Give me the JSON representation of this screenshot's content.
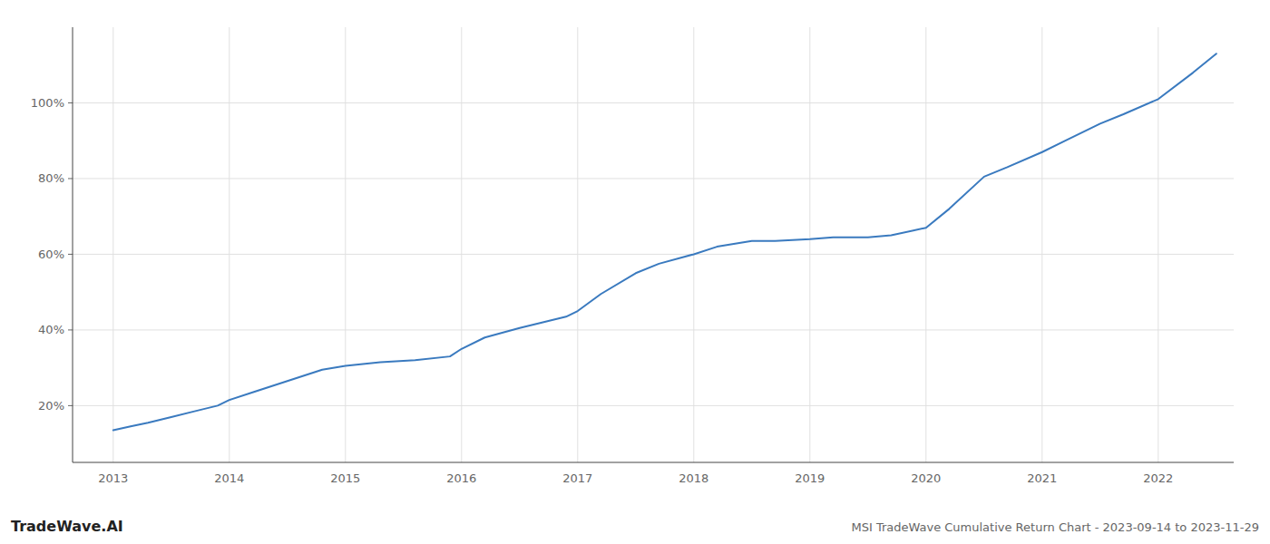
{
  "chart_data": {
    "type": "line",
    "title": "MSI TradeWave Cumulative Return Chart - 2023-09-14 to 2023-11-29",
    "annotations": [
      "TradeWave.AI"
    ],
    "color": "#3a7abf",
    "x": [
      2013.0,
      2013.15,
      2013.3,
      2013.5,
      2013.7,
      2013.9,
      2014.0,
      2014.2,
      2014.5,
      2014.8,
      2015.0,
      2015.3,
      2015.6,
      2015.9,
      2016.0,
      2016.2,
      2016.5,
      2016.7,
      2016.9,
      2017.0,
      2017.2,
      2017.5,
      2017.7,
      2018.0,
      2018.2,
      2018.5,
      2018.7,
      2019.0,
      2019.2,
      2019.5,
      2019.7,
      2020.0,
      2020.2,
      2020.5,
      2020.7,
      2021.0,
      2021.2,
      2021.5,
      2021.7,
      2022.0,
      2022.3,
      2022.5
    ],
    "values": [
      13.5,
      14.5,
      15.5,
      17.0,
      18.5,
      20.0,
      21.5,
      23.5,
      26.5,
      29.5,
      30.5,
      31.5,
      32.0,
      33.0,
      35.0,
      38.0,
      40.5,
      42.0,
      43.5,
      45.0,
      49.5,
      55.0,
      57.5,
      60.0,
      62.0,
      63.5,
      63.5,
      64.0,
      64.5,
      64.5,
      65.0,
      67.0,
      72.0,
      80.5,
      83.0,
      87.0,
      90.0,
      94.5,
      97.0,
      101.0,
      108.0,
      113.0
    ],
    "xlim": [
      2012.65,
      2022.65
    ],
    "xticks": [
      2013,
      2014,
      2015,
      2016,
      2017,
      2018,
      2019,
      2020,
      2021,
      2022
    ],
    "ylim": [
      5,
      120
    ],
    "yticks": [
      {
        "value": 20,
        "label": "20%"
      },
      {
        "value": 40,
        "label": "40%"
      },
      {
        "value": 60,
        "label": "60%"
      },
      {
        "value": 80,
        "label": "80%"
      },
      {
        "value": 100,
        "label": "100%"
      }
    ],
    "grid": true
  }
}
